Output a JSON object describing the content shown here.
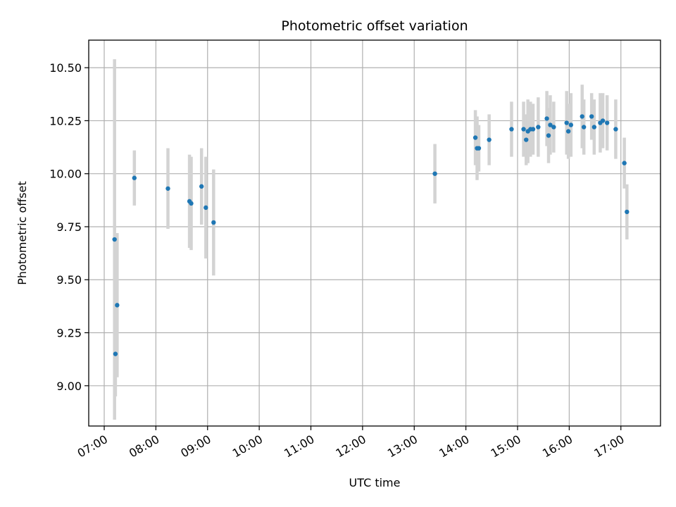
{
  "chart_data": {
    "type": "scatter",
    "title": "Photometric offset variation",
    "xlabel": "UTC time",
    "ylabel": "Photometric offset",
    "xlim": [
      "06:42",
      "17:46"
    ],
    "ylim": [
      8.81,
      10.63
    ],
    "grid": true,
    "x_ticks": [
      "07:00",
      "08:00",
      "09:00",
      "10:00",
      "11:00",
      "12:00",
      "13:00",
      "14:00",
      "15:00",
      "16:00",
      "17:00"
    ],
    "y_ticks": [
      "9.00",
      "9.25",
      "9.50",
      "9.75",
      "10.00",
      "10.25",
      "10.50"
    ],
    "colors": {
      "marker": "#1f77b4",
      "errorbar": "#d3d3d3",
      "grid": "#b0b0b0",
      "frame": "#000000"
    },
    "points": [
      {
        "t": "07:12",
        "y": 9.69,
        "err": 0.85
      },
      {
        "t": "07:13",
        "y": 9.15,
        "err": 0.2
      },
      {
        "t": "07:15",
        "y": 9.38,
        "err": 0.34
      },
      {
        "t": "07:35",
        "y": 9.98,
        "err": 0.13
      },
      {
        "t": "08:14",
        "y": 9.93,
        "err": 0.19
      },
      {
        "t": "08:39",
        "y": 9.87,
        "err": 0.22
      },
      {
        "t": "08:41",
        "y": 9.86,
        "err": 0.22
      },
      {
        "t": "08:53",
        "y": 9.94,
        "err": 0.18
      },
      {
        "t": "08:58",
        "y": 9.84,
        "err": 0.24
      },
      {
        "t": "09:07",
        "y": 9.77,
        "err": 0.25
      },
      {
        "t": "13:24",
        "y": 10.0,
        "err": 0.14
      },
      {
        "t": "14:11",
        "y": 10.17,
        "err": 0.13
      },
      {
        "t": "14:13",
        "y": 10.12,
        "err": 0.15
      },
      {
        "t": "14:15",
        "y": 10.12,
        "err": 0.11
      },
      {
        "t": "14:27",
        "y": 10.16,
        "err": 0.12
      },
      {
        "t": "14:53",
        "y": 10.21,
        "err": 0.13
      },
      {
        "t": "15:07",
        "y": 10.21,
        "err": 0.13
      },
      {
        "t": "15:10",
        "y": 10.16,
        "err": 0.12
      },
      {
        "t": "15:12",
        "y": 10.2,
        "err": 0.15
      },
      {
        "t": "15:15",
        "y": 10.21,
        "err": 0.13
      },
      {
        "t": "15:18",
        "y": 10.21,
        "err": 0.12
      },
      {
        "t": "15:24",
        "y": 10.22,
        "err": 0.14
      },
      {
        "t": "15:34",
        "y": 10.26,
        "err": 0.13
      },
      {
        "t": "15:36",
        "y": 10.18,
        "err": 0.13
      },
      {
        "t": "15:38",
        "y": 10.23,
        "err": 0.14
      },
      {
        "t": "15:42",
        "y": 10.22,
        "err": 0.12
      },
      {
        "t": "15:57",
        "y": 10.24,
        "err": 0.15
      },
      {
        "t": "15:59",
        "y": 10.2,
        "err": 0.13
      },
      {
        "t": "16:02",
        "y": 10.23,
        "err": 0.15
      },
      {
        "t": "16:15",
        "y": 10.27,
        "err": 0.15
      },
      {
        "t": "16:17",
        "y": 10.22,
        "err": 0.13
      },
      {
        "t": "16:26",
        "y": 10.27,
        "err": 0.11
      },
      {
        "t": "16:29",
        "y": 10.22,
        "err": 0.13
      },
      {
        "t": "16:36",
        "y": 10.24,
        "err": 0.14
      },
      {
        "t": "16:39",
        "y": 10.25,
        "err": 0.13
      },
      {
        "t": "16:44",
        "y": 10.24,
        "err": 0.13
      },
      {
        "t": "16:54",
        "y": 10.21,
        "err": 0.14
      },
      {
        "t": "17:04",
        "y": 10.05,
        "err": 0.12
      },
      {
        "t": "17:07",
        "y": 9.82,
        "err": 0.13
      }
    ]
  }
}
